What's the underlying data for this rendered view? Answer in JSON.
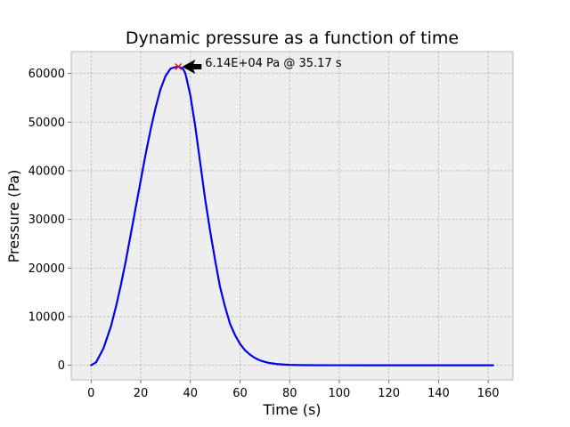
{
  "chart_data": {
    "type": "line",
    "title": "Dynamic pressure as a function of time",
    "xlabel": "Time (s)",
    "ylabel": "Pressure (Pa)",
    "xlim": [
      -8,
      170
    ],
    "ylim": [
      -3000,
      64500
    ],
    "xticks": [
      0,
      20,
      40,
      60,
      80,
      100,
      120,
      140,
      160
    ],
    "yticks": [
      0,
      10000,
      20000,
      30000,
      40000,
      50000,
      60000
    ],
    "grid": true,
    "series": [
      {
        "color": "#0000ee",
        "x": [
          0,
          2,
          5,
          8,
          10,
          12,
          14,
          16,
          18,
          20,
          22,
          24,
          26,
          28,
          30,
          32,
          34,
          35.17,
          36,
          37,
          38,
          40,
          42,
          44,
          46,
          48,
          50,
          52,
          54,
          56,
          58,
          60,
          62,
          64,
          66,
          68,
          70,
          72,
          75,
          78,
          80,
          84,
          88,
          95,
          100,
          110,
          120,
          130,
          140,
          150,
          162
        ],
        "y": [
          0,
          600,
          3500,
          8000,
          12000,
          16500,
          21500,
          27000,
          32500,
          38000,
          43500,
          48500,
          53000,
          56800,
          59500,
          61000,
          61300,
          61400,
          61200,
          61000,
          60000,
          55500,
          49000,
          41500,
          34000,
          27500,
          21500,
          16000,
          12000,
          8500,
          6200,
          4400,
          3100,
          2200,
          1500,
          1000,
          700,
          450,
          250,
          130,
          80,
          40,
          20,
          10,
          5,
          0,
          0,
          0,
          0,
          0,
          0
        ]
      }
    ],
    "peak_marker": {
      "x": 35.17,
      "y": 61400,
      "color": "#ff0000"
    },
    "annotation": {
      "text": "6.14E+04 Pa @ 35.17 s",
      "x": 35.17,
      "y": 61400
    }
  }
}
